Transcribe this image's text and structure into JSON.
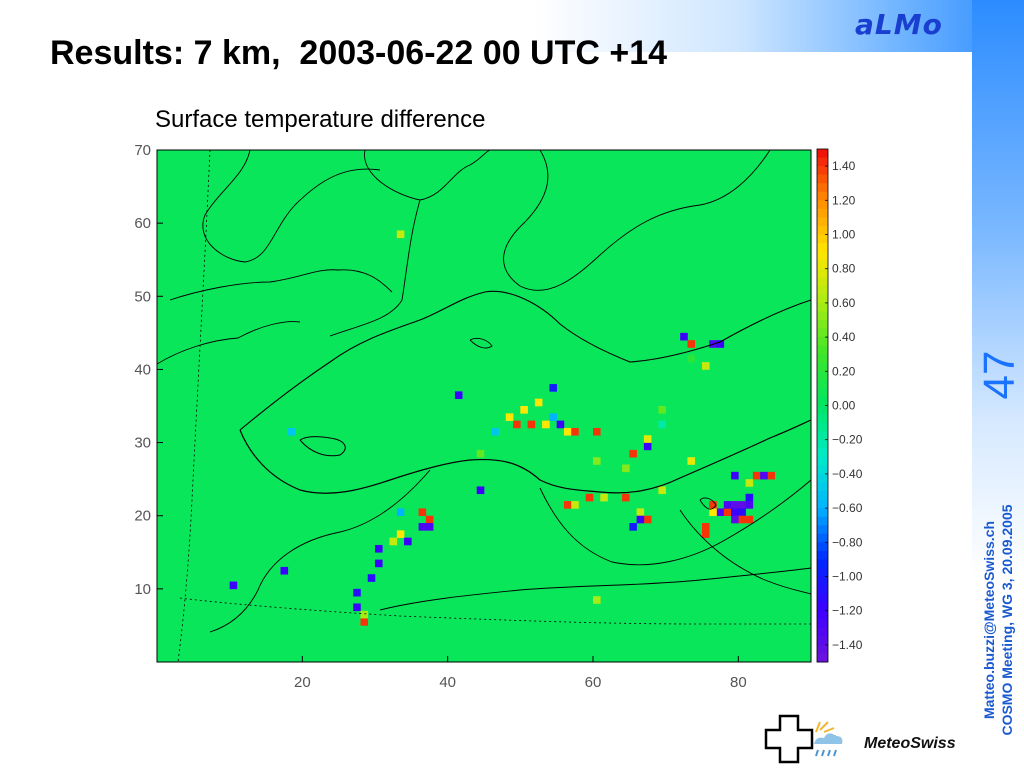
{
  "slide": {
    "title": "Results: 7 km,  2003-06-22 00 UTC +14",
    "brand": "aLMo",
    "page_number": "47",
    "side_lines": [
      "Matteo.buzzi@MeteoSwiss.ch",
      "COSMO Meeting, WG 3, 20.09.2005"
    ],
    "logo_text": "MeteoSwiss"
  },
  "chart_data": {
    "type": "heatmap",
    "title": "Surface temperature difference",
    "xlabel": "",
    "ylabel": "",
    "xlim": [
      0,
      90
    ],
    "ylim": [
      0,
      70
    ],
    "x_ticks": [
      20,
      40,
      60,
      80
    ],
    "y_ticks": [
      10,
      20,
      30,
      40,
      50,
      60,
      70
    ],
    "colorbar": {
      "vmin": -1.5,
      "vmax": 1.5,
      "ticks": [
        "1.40",
        "1.20",
        "1.00",
        "0.80",
        "0.60",
        "0.40",
        "0.20",
        "0.00",
        "−0.20",
        "−0.40",
        "−0.60",
        "−0.80",
        "−1.00",
        "−1.20",
        "−1.40"
      ]
    },
    "background_value": 0.05,
    "hotspots": [
      {
        "x": 72.5,
        "y": 44.5,
        "v": -1.2
      },
      {
        "x": 76.5,
        "y": 43.5,
        "v": -1.3
      },
      {
        "x": 77.5,
        "y": 43.5,
        "v": -1.2
      },
      {
        "x": 73.5,
        "y": 43.5,
        "v": 1.4
      },
      {
        "x": 73.5,
        "y": 41.5,
        "v": 0.2
      },
      {
        "x": 75.5,
        "y": 40.5,
        "v": 0.7
      },
      {
        "x": 41.5,
        "y": 36.5,
        "v": -1.2
      },
      {
        "x": 54.5,
        "y": 37.5,
        "v": -1.0
      },
      {
        "x": 52.5,
        "y": 35.5,
        "v": 0.9
      },
      {
        "x": 49.5,
        "y": 32.5,
        "v": 1.4
      },
      {
        "x": 51.5,
        "y": 32.5,
        "v": 1.4
      },
      {
        "x": 48.5,
        "y": 33.5,
        "v": 0.9
      },
      {
        "x": 50.5,
        "y": 34.5,
        "v": 0.9
      },
      {
        "x": 53.5,
        "y": 32.5,
        "v": 0.9
      },
      {
        "x": 55.5,
        "y": 32.5,
        "v": -1.2
      },
      {
        "x": 54.5,
        "y": 33.5,
        "v": -0.6
      },
      {
        "x": 46.5,
        "y": 31.5,
        "v": -0.5
      },
      {
        "x": 56.5,
        "y": 31.5,
        "v": 0.9
      },
      {
        "x": 57.5,
        "y": 31.5,
        "v": 1.4
      },
      {
        "x": 60.5,
        "y": 31.5,
        "v": 1.4
      },
      {
        "x": 65.5,
        "y": 28.5,
        "v": 1.4
      },
      {
        "x": 67.5,
        "y": 29.5,
        "v": -1.2
      },
      {
        "x": 67.5,
        "y": 30.5,
        "v": 0.8
      },
      {
        "x": 69.5,
        "y": 32.5,
        "v": -0.2
      },
      {
        "x": 69.5,
        "y": 34.5,
        "v": 0.4
      },
      {
        "x": 73.5,
        "y": 27.5,
        "v": 0.8
      },
      {
        "x": 79.5,
        "y": 25.5,
        "v": -1.2
      },
      {
        "x": 81.5,
        "y": 24.5,
        "v": 0.7
      },
      {
        "x": 82.5,
        "y": 25.5,
        "v": 1.4
      },
      {
        "x": 84.5,
        "y": 25.5,
        "v": 1.4
      },
      {
        "x": 83.5,
        "y": 25.5,
        "v": -1.3
      },
      {
        "x": 81.5,
        "y": 22.5,
        "v": -1.1
      },
      {
        "x": 76.5,
        "y": 21.5,
        "v": 1.4
      },
      {
        "x": 77.5,
        "y": 20.5,
        "v": -1.3
      },
      {
        "x": 78.5,
        "y": 20.5,
        "v": 1.4
      },
      {
        "x": 78.5,
        "y": 21.5,
        "v": -1.3
      },
      {
        "x": 79.5,
        "y": 21.5,
        "v": -1.4
      },
      {
        "x": 80.5,
        "y": 21.5,
        "v": -1.4
      },
      {
        "x": 81.5,
        "y": 21.5,
        "v": -1.3
      },
      {
        "x": 79.5,
        "y": 20.5,
        "v": -1.2
      },
      {
        "x": 80.5,
        "y": 20.5,
        "v": -1.1
      },
      {
        "x": 80.5,
        "y": 19.5,
        "v": 1.4
      },
      {
        "x": 81.5,
        "y": 19.5,
        "v": 1.4
      },
      {
        "x": 79.5,
        "y": 19.5,
        "v": -1.4
      },
      {
        "x": 75.5,
        "y": 18.5,
        "v": 1.4
      },
      {
        "x": 75.5,
        "y": 17.5,
        "v": 1.4
      },
      {
        "x": 76.5,
        "y": 20.5,
        "v": 0.9
      },
      {
        "x": 69.5,
        "y": 23.5,
        "v": 0.7
      },
      {
        "x": 66.5,
        "y": 20.5,
        "v": 0.7
      },
      {
        "x": 67.5,
        "y": 19.5,
        "v": 1.4
      },
      {
        "x": 66.5,
        "y": 19.5,
        "v": -1.2
      },
      {
        "x": 65.5,
        "y": 18.5,
        "v": -1.0
      },
      {
        "x": 64.5,
        "y": 22.5,
        "v": 1.4
      },
      {
        "x": 56.5,
        "y": 21.5,
        "v": 1.4
      },
      {
        "x": 57.5,
        "y": 21.5,
        "v": 0.7
      },
      {
        "x": 59.5,
        "y": 22.5,
        "v": 1.4
      },
      {
        "x": 61.5,
        "y": 22.5,
        "v": 0.7
      },
      {
        "x": 44.5,
        "y": 23.5,
        "v": -1.2
      },
      {
        "x": 18.5,
        "y": 31.5,
        "v": -0.5
      },
      {
        "x": 36.5,
        "y": 20.5,
        "v": 1.4
      },
      {
        "x": 37.5,
        "y": 19.5,
        "v": 1.4
      },
      {
        "x": 36.5,
        "y": 18.5,
        "v": -1.3
      },
      {
        "x": 37.5,
        "y": 18.5,
        "v": -1.3
      },
      {
        "x": 33.5,
        "y": 20.5,
        "v": -0.6
      },
      {
        "x": 33.5,
        "y": 17.5,
        "v": 0.9
      },
      {
        "x": 34.5,
        "y": 16.5,
        "v": -1.2
      },
      {
        "x": 32.5,
        "y": 16.5,
        "v": 0.7
      },
      {
        "x": 30.5,
        "y": 15.5,
        "v": -1.2
      },
      {
        "x": 30.5,
        "y": 13.5,
        "v": -1.2
      },
      {
        "x": 29.5,
        "y": 11.5,
        "v": -1.1
      },
      {
        "x": 27.5,
        "y": 9.5,
        "v": -1.1
      },
      {
        "x": 27.5,
        "y": 7.5,
        "v": -1.2
      },
      {
        "x": 28.5,
        "y": 5.5,
        "v": 1.4
      },
      {
        "x": 28.5,
        "y": 6.5,
        "v": 0.6
      },
      {
        "x": 17.5,
        "y": 12.5,
        "v": -1.2
      },
      {
        "x": 10.5,
        "y": 10.5,
        "v": -1.2
      },
      {
        "x": 64.5,
        "y": 26.5,
        "v": 0.5
      },
      {
        "x": 60.5,
        "y": 8.5,
        "v": 0.6
      },
      {
        "x": 33.5,
        "y": 58.5,
        "v": 0.7
      },
      {
        "x": 60.5,
        "y": 27.5,
        "v": 0.5
      },
      {
        "x": 44.5,
        "y": 28.5,
        "v": 0.4
      }
    ]
  }
}
